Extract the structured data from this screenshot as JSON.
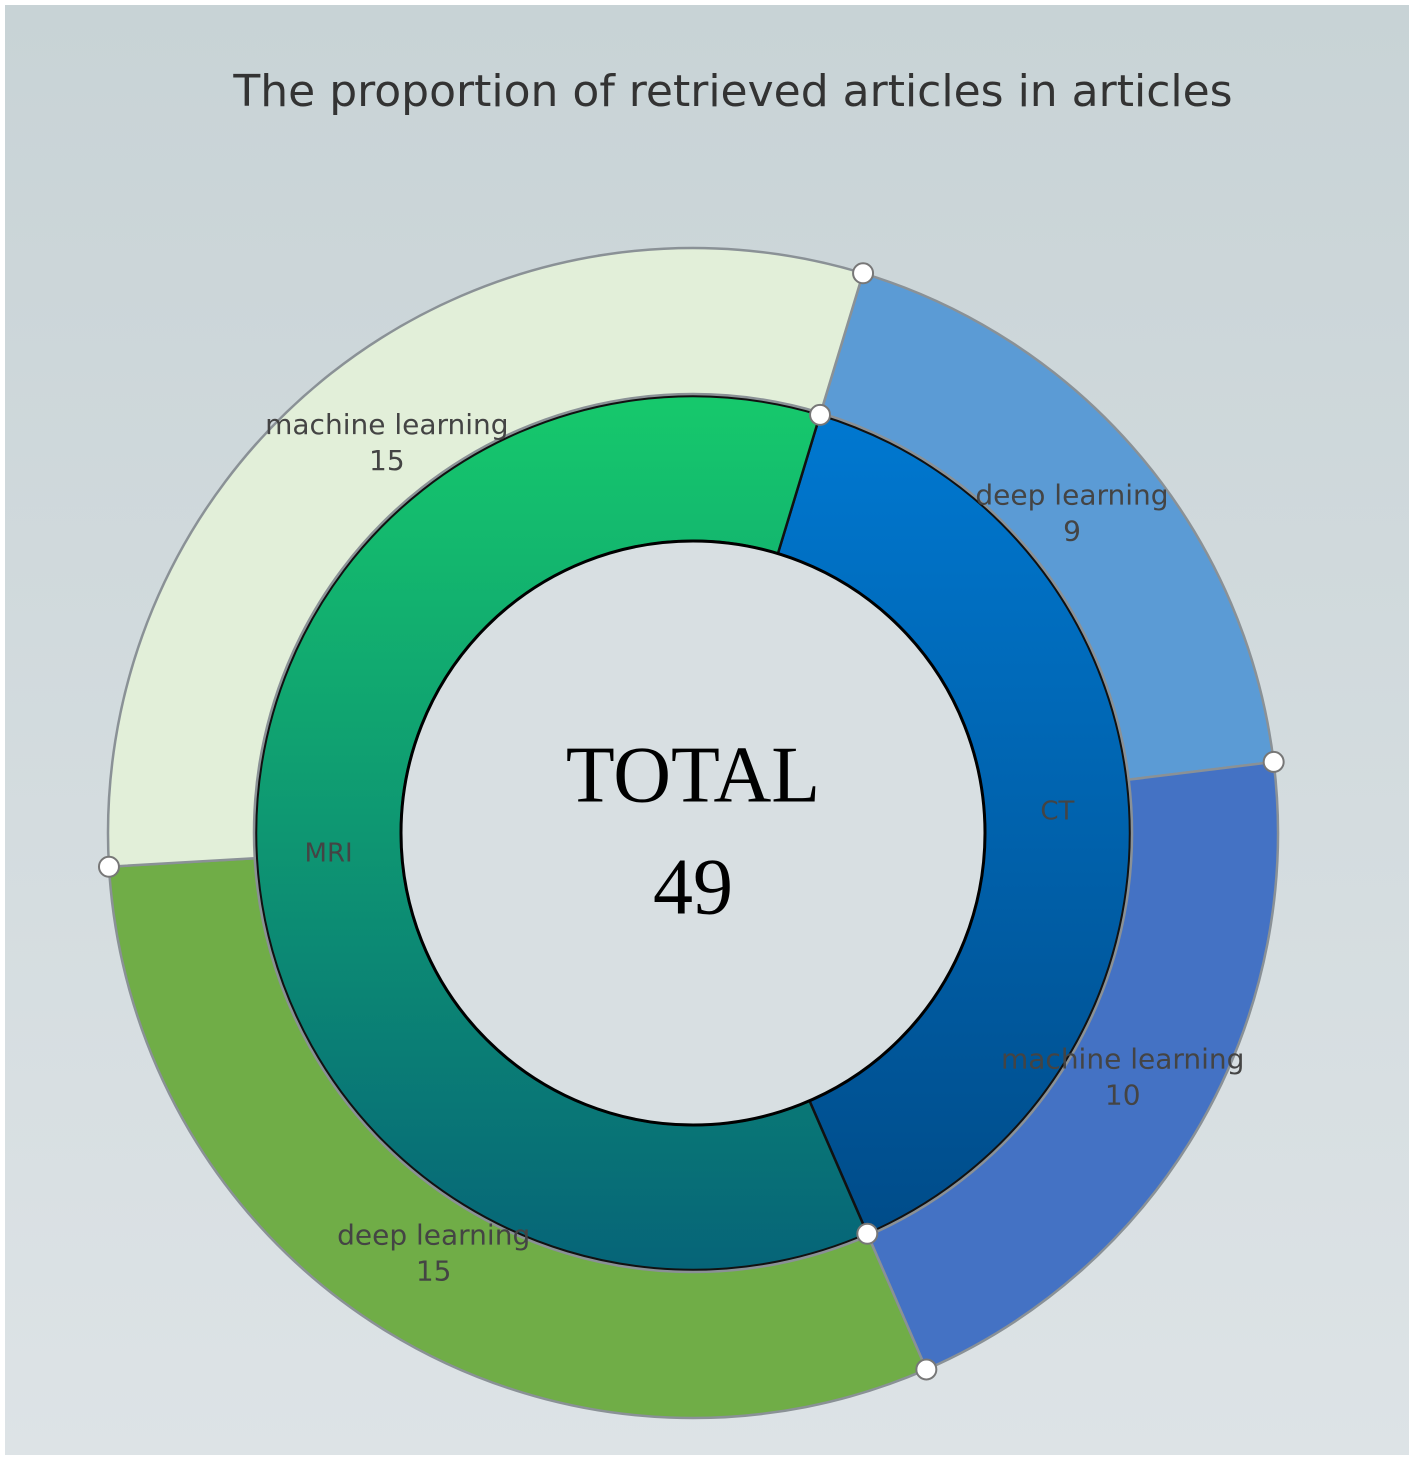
{
  "chart_data": {
    "type": "sunburst",
    "title": "The proportion of retrieved articles in articles",
    "center_label": "TOTAL",
    "total": 49,
    "groups": [
      {
        "name": "CT",
        "color": [
          "#0079d2",
          "#004a86"
        ],
        "children": [
          {
            "name": "deep learning",
            "value": 9,
            "color": "#5b9bd5"
          },
          {
            "name": "machine learning",
            "value": 10,
            "color": "#4472c4"
          }
        ]
      },
      {
        "name": "MRI",
        "color": [
          "#16c96c",
          "#066478"
        ],
        "children": [
          {
            "name": "deep learning",
            "value": 15,
            "color": "#70ad47"
          },
          {
            "name": "machine learning",
            "value": 15,
            "color": "#e2efd9"
          }
        ]
      }
    ]
  }
}
